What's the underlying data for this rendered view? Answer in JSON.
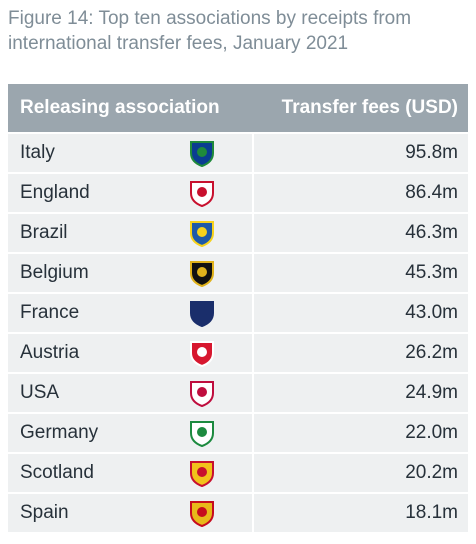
{
  "title": "Figure 14: Top ten associations by receipts from international transfer fees, January 2021",
  "table": {
    "header": [
      "Releasing association",
      "Transfer fees (USD)"
    ],
    "rows": [
      [
        "Italy",
        "95.8m"
      ],
      [
        "England",
        "86.4m"
      ],
      [
        "Brazil",
        "46.3m"
      ],
      [
        "Belgium",
        "45.3m"
      ],
      [
        "France",
        "43.0m"
      ],
      [
        "Austria",
        "26.2m"
      ],
      [
        "USA",
        "24.9m"
      ],
      [
        "Germany",
        "22.0m"
      ],
      [
        "Scotland",
        "20.2m"
      ],
      [
        "Spain",
        "18.1m"
      ]
    ]
  }
}
